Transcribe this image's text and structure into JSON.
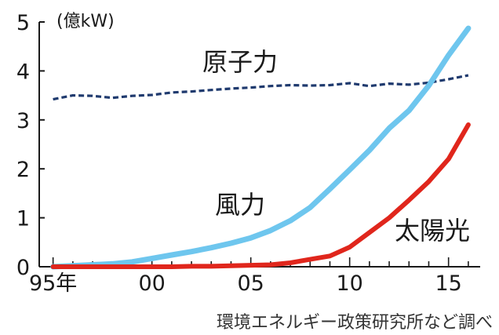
{
  "chart_data": {
    "type": "line",
    "ylabel": "(億kW)",
    "source_note": "環境エネルギー政策研究所など調べ",
    "ylim": [
      0,
      5
    ],
    "xlim": [
      1995,
      2016
    ],
    "yticks": [
      "0",
      "1",
      "2",
      "3",
      "4",
      "5"
    ],
    "xticks": [
      {
        "x": 1995,
        "label": "95年"
      },
      {
        "x": 2000,
        "label": "00"
      },
      {
        "x": 2005,
        "label": "05"
      },
      {
        "x": 2010,
        "label": "10"
      },
      {
        "x": 2015,
        "label": "15"
      }
    ],
    "grid": false,
    "series": [
      {
        "name": "原子力",
        "color": "#1f3a6e",
        "style": "dashed",
        "x": [
          1995,
          1996,
          1997,
          1998,
          1999,
          2000,
          2001,
          2002,
          2003,
          2004,
          2005,
          2006,
          2007,
          2008,
          2009,
          2010,
          2011,
          2012,
          2013,
          2014,
          2015,
          2016
        ],
        "values": [
          3.42,
          3.5,
          3.49,
          3.45,
          3.49,
          3.51,
          3.56,
          3.58,
          3.61,
          3.64,
          3.66,
          3.69,
          3.71,
          3.7,
          3.71,
          3.75,
          3.69,
          3.74,
          3.72,
          3.76,
          3.83,
          3.91
        ]
      },
      {
        "name": "風力",
        "color": "#6ec6ee",
        "style": "solid",
        "x": [
          1995,
          1996,
          1997,
          1998,
          1999,
          2000,
          2001,
          2002,
          2003,
          2004,
          2005,
          2006,
          2007,
          2008,
          2009,
          2010,
          2011,
          2012,
          2013,
          2014,
          2015,
          2016
        ],
        "values": [
          0.0,
          0.02,
          0.04,
          0.06,
          0.1,
          0.17,
          0.24,
          0.31,
          0.39,
          0.48,
          0.59,
          0.74,
          0.94,
          1.21,
          1.59,
          1.98,
          2.38,
          2.83,
          3.19,
          3.7,
          4.32,
          4.87
        ]
      },
      {
        "name": "太陽光",
        "color": "#e0261c",
        "style": "solid",
        "x": [
          1995,
          1996,
          1997,
          1998,
          1999,
          2000,
          2001,
          2002,
          2003,
          2004,
          2005,
          2006,
          2007,
          2008,
          2009,
          2010,
          2011,
          2012,
          2013,
          2014,
          2015,
          2016
        ],
        "values": [
          0.0,
          0.0,
          0.0,
          0.0,
          0.0,
          0.0,
          0.0,
          0.01,
          0.01,
          0.02,
          0.03,
          0.04,
          0.08,
          0.15,
          0.22,
          0.4,
          0.7,
          1.0,
          1.36,
          1.74,
          2.2,
          2.9
        ]
      }
    ]
  }
}
